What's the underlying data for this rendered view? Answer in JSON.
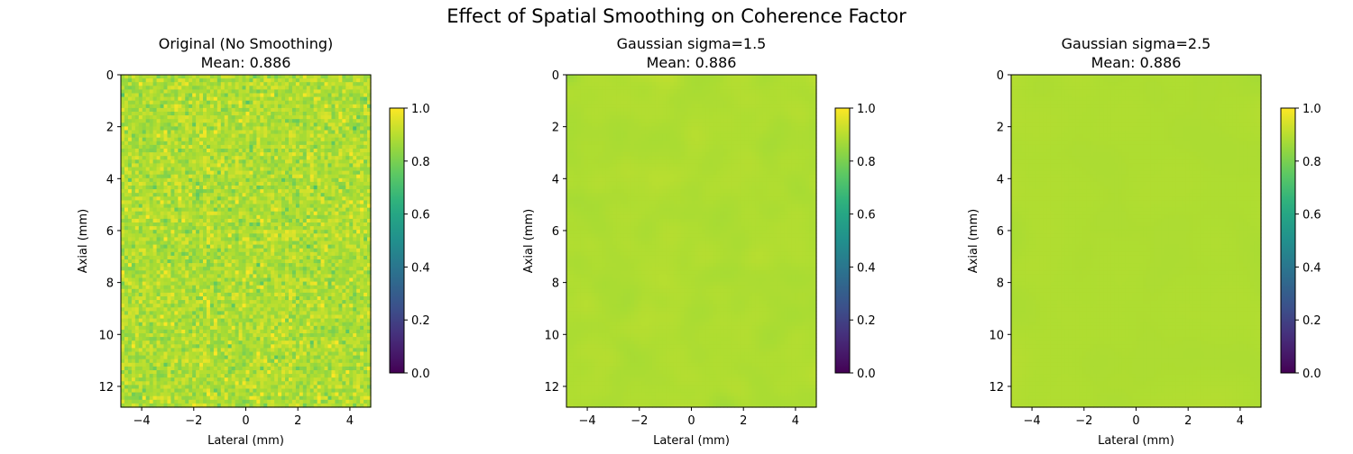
{
  "figure": {
    "title": "Effect of Spatial Smoothing on Coherence Factor"
  },
  "chart_data": [
    {
      "type": "heatmap",
      "title": "Original (No Smoothing)",
      "subtitle": "Mean: 0.886",
      "xlabel": "Lateral (mm)",
      "ylabel": "Axial (mm)",
      "xlim": [
        -4.8,
        4.8
      ],
      "ylim": [
        12.8,
        0
      ],
      "xticks": [
        -4,
        -2,
        0,
        2,
        4
      ],
      "yticks": [
        0,
        2,
        4,
        6,
        8,
        10,
        12
      ],
      "colormap": "viridis",
      "clim": [
        0.0,
        1.0
      ],
      "colorbar_ticks": [
        "0.0",
        "0.2",
        "0.4",
        "0.6",
        "0.8",
        "1.0"
      ],
      "mean": 0.886,
      "pixel_noise_std": 0.045
    },
    {
      "type": "heatmap",
      "title": "Gaussian sigma=1.5",
      "subtitle": "Mean: 0.886",
      "xlabel": "Lateral (mm)",
      "ylabel": "Axial (mm)",
      "xlim": [
        -4.8,
        4.8
      ],
      "ylim": [
        12.8,
        0
      ],
      "xticks": [
        -4,
        -2,
        0,
        2,
        4
      ],
      "yticks": [
        0,
        2,
        4,
        6,
        8,
        10,
        12
      ],
      "colormap": "viridis",
      "clim": [
        0.0,
        1.0
      ],
      "colorbar_ticks": [
        "0.0",
        "0.2",
        "0.4",
        "0.6",
        "0.8",
        "1.0"
      ],
      "mean": 0.886,
      "smoothing_sigma": 1.5
    },
    {
      "type": "heatmap",
      "title": "Gaussian sigma=2.5",
      "subtitle": "Mean: 0.886",
      "xlabel": "Lateral (mm)",
      "ylabel": "Axial (mm)",
      "xlim": [
        -4.8,
        4.8
      ],
      "ylim": [
        12.8,
        0
      ],
      "xticks": [
        -4,
        -2,
        0,
        2,
        4
      ],
      "yticks": [
        0,
        2,
        4,
        6,
        8,
        10,
        12
      ],
      "colormap": "viridis",
      "clim": [
        0.0,
        1.0
      ],
      "colorbar_ticks": [
        "0.0",
        "0.2",
        "0.4",
        "0.6",
        "0.8",
        "1.0"
      ],
      "mean": 0.886,
      "smoothing_sigma": 2.5
    }
  ]
}
